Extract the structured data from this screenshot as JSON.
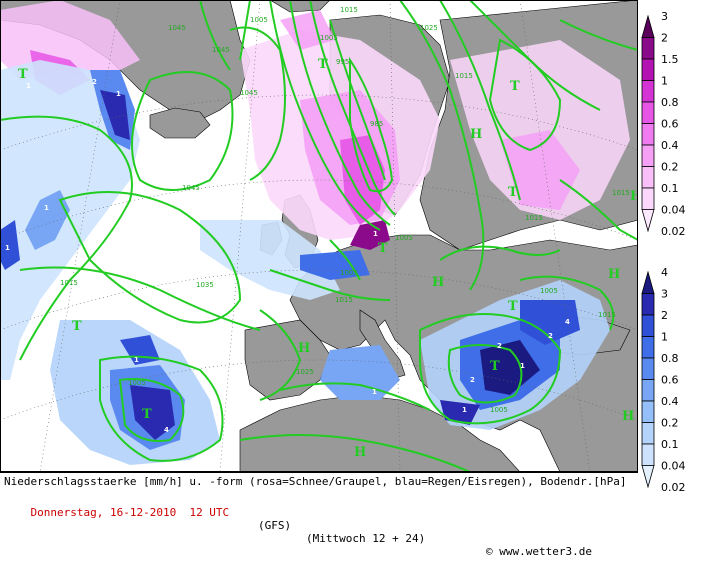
{
  "footer": {
    "description": "Niederschlagsstaerke [mm/h] u. -form (rosa=Schnee/Graupel, blau=Regen/Eisregen), Bodendr.[hPa]",
    "date_time": "Donnerstag, 16-12-2010  12 UTC",
    "model": "(GFS)",
    "run": "(Mittwoch 12 + 24)",
    "copyright": "© www.wetter3.de"
  },
  "snow_scale": {
    "labels": [
      "3",
      "2",
      "1.5",
      "1",
      "0.8",
      "0.6",
      "0.4",
      "0.2",
      "0.1",
      "0.04",
      "0.02"
    ],
    "colors": [
      "#5a005a",
      "#8b0a8b",
      "#b313b3",
      "#d633d6",
      "#e655e6",
      "#f07bf0",
      "#f5a0f5",
      "#f8bff8",
      "#fbd8fb",
      "#fde9fd"
    ]
  },
  "rain_scale": {
    "labels": [
      "4",
      "3",
      "2",
      "1",
      "0.8",
      "0.6",
      "0.4",
      "0.2",
      "0.1",
      "0.04",
      "0.02"
    ],
    "colors": [
      "#1a1a80",
      "#2a2ab0",
      "#3050d8",
      "#3f6ee8",
      "#5a8af0",
      "#78a6f5",
      "#95bff8",
      "#b3d3fb",
      "#cde3fd",
      "#e3f0fe"
    ]
  },
  "map": {
    "pressure_labels": [
      {
        "text": "1045"
      },
      {
        "text": "1045"
      },
      {
        "text": "1045"
      },
      {
        "text": "1045"
      },
      {
        "text": "1005"
      },
      {
        "text": "1015"
      },
      {
        "text": "1005"
      },
      {
        "text": "995"
      },
      {
        "text": "985"
      },
      {
        "text": "1025"
      },
      {
        "text": "1015"
      },
      {
        "text": "1015"
      },
      {
        "text": "1015"
      },
      {
        "text": "1035"
      },
      {
        "text": "1005"
      },
      {
        "text": "1015"
      },
      {
        "text": "1025"
      },
      {
        "text": "1005"
      },
      {
        "text": "1005"
      },
      {
        "text": "1005"
      },
      {
        "text": "1015"
      },
      {
        "text": "1005"
      },
      {
        "text": "1015"
      }
    ],
    "pressure_centers": [
      "T",
      "T",
      "T",
      "T",
      "T",
      "H",
      "H",
      "H",
      "H",
      "H",
      "H",
      "H",
      "T",
      "T",
      "T",
      "T"
    ]
  }
}
